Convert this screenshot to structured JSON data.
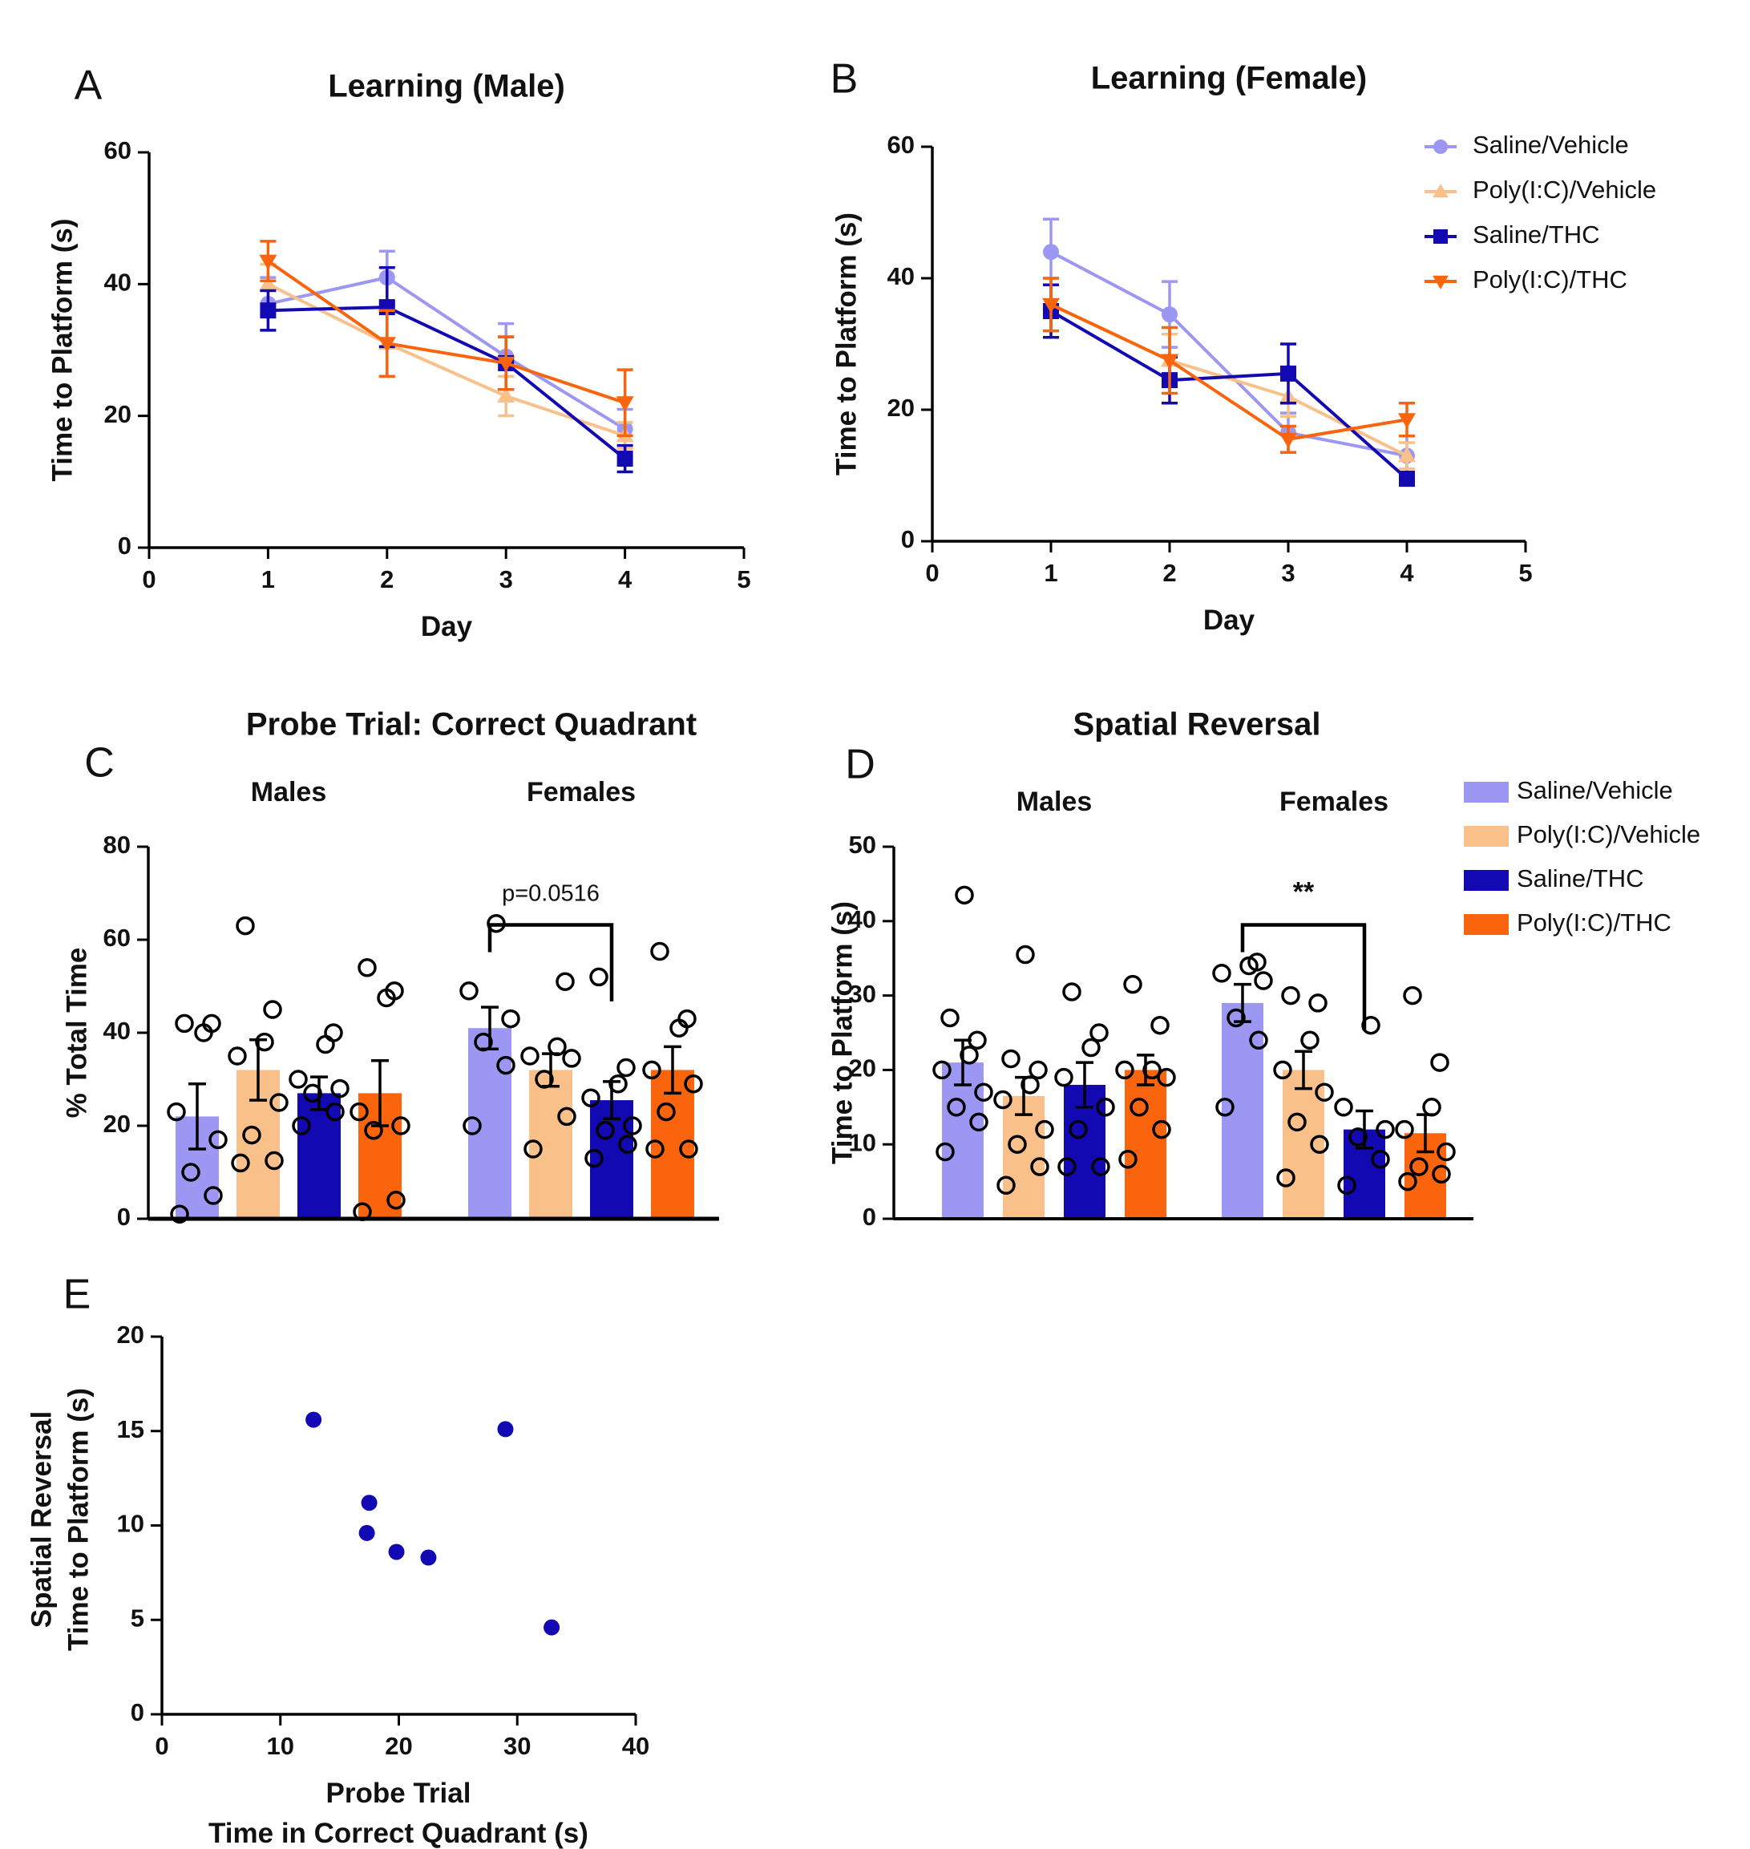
{
  "colors": {
    "saline_vehicle": "#9b97f2",
    "polyic_vehicle": "#f9c08a",
    "saline_thc": "#1209b3",
    "polyic_thc": "#f9640c",
    "axis": "#000000"
  },
  "chart_data": [
    {
      "id": "A",
      "panel_label": "A",
      "type": "line",
      "title": "Learning (Male)",
      "xlabel": "Day",
      "ylabel": "Time to Platform (s)",
      "xlim": [
        0,
        5
      ],
      "ylim": [
        0,
        60
      ],
      "xticks": [
        "0",
        "1",
        "2",
        "3",
        "4",
        "5"
      ],
      "yticks": [
        "0",
        "20",
        "40",
        "60"
      ],
      "x": [
        1,
        2,
        3,
        4
      ],
      "series": [
        {
          "name": "Saline/Vehicle",
          "key": "saline_vehicle",
          "marker": "circle",
          "values": [
            37,
            41,
            29,
            18
          ],
          "err": [
            4,
            4,
            5,
            3
          ]
        },
        {
          "name": "Poly(I:C)/Vehicle",
          "key": "polyic_vehicle",
          "marker": "triangle-up",
          "values": [
            40,
            31,
            23,
            17
          ],
          "err": [
            3,
            5,
            3,
            2
          ]
        },
        {
          "name": "Saline/THC",
          "key": "saline_thc",
          "marker": "square",
          "values": [
            36,
            36.5,
            28,
            13.5
          ],
          "err": [
            3,
            6,
            4,
            2
          ]
        },
        {
          "name": "Poly(I:C)/THC",
          "key": "polyic_thc",
          "marker": "triangle-down",
          "values": [
            43.5,
            31,
            28,
            22
          ],
          "err": [
            3,
            5,
            4,
            5
          ]
        }
      ]
    },
    {
      "id": "B",
      "panel_label": "B",
      "type": "line",
      "title": "Learning (Female)",
      "xlabel": "Day",
      "ylabel": "Time to Platform (s)",
      "xlim": [
        0,
        5
      ],
      "ylim": [
        0,
        60
      ],
      "xticks": [
        "0",
        "1",
        "2",
        "3",
        "4",
        "5"
      ],
      "yticks": [
        "0",
        "20",
        "40",
        "60"
      ],
      "x": [
        1,
        2,
        3,
        4
      ],
      "legend": [
        "Saline/Vehicle",
        "Poly(I:C)/Vehicle",
        "Saline/THC",
        "Poly(I:C)/THC"
      ],
      "series": [
        {
          "name": "Saline/Vehicle",
          "key": "saline_vehicle",
          "marker": "circle",
          "values": [
            44,
            34.5,
            16.5,
            13
          ],
          "err": [
            5,
            5,
            3,
            3
          ]
        },
        {
          "name": "Poly(I:C)/Vehicle",
          "key": "polyic_vehicle",
          "marker": "triangle-up",
          "values": [
            36,
            27.5,
            22,
            13
          ],
          "err": [
            4,
            4,
            3,
            2
          ]
        },
        {
          "name": "Saline/THC",
          "key": "saline_thc",
          "marker": "square",
          "values": [
            35,
            24.5,
            25.5,
            9.5
          ],
          "err": [
            4,
            3.5,
            4.5,
            1
          ]
        },
        {
          "name": "Poly(I:C)/THC",
          "key": "polyic_thc",
          "marker": "triangle-down",
          "values": [
            36,
            27.5,
            15.5,
            18.5
          ],
          "err": [
            4,
            5,
            2,
            2.5
          ]
        }
      ]
    },
    {
      "id": "C",
      "panel_label": "C",
      "type": "bar",
      "title": "Probe Trial: Correct Quadrant",
      "ylabel": "% Total Time",
      "ylim": [
        0,
        80
      ],
      "yticks": [
        "0",
        "20",
        "40",
        "60",
        "80"
      ],
      "groups": [
        "Males",
        "Females"
      ],
      "annotation": "p=0.0516",
      "bars": [
        {
          "group": 0,
          "series": "Saline/Vehicle",
          "key": "saline_vehicle",
          "value": 22,
          "err": 7,
          "points": [
            1,
            5,
            10,
            17,
            23,
            40,
            42,
            42
          ]
        },
        {
          "group": 0,
          "series": "Poly(I:C)/Vehicle",
          "key": "polyic_vehicle",
          "value": 32,
          "err": 6.5,
          "points": [
            12,
            12.5,
            18,
            25,
            35,
            38,
            45,
            63
          ]
        },
        {
          "group": 0,
          "series": "Saline/THC",
          "key": "saline_thc",
          "value": 27,
          "err": 3.5,
          "points": [
            20,
            23,
            27,
            28,
            30,
            37.5,
            40
          ]
        },
        {
          "group": 0,
          "series": "Poly(I:C)/THC",
          "key": "polyic_thc",
          "value": 27,
          "err": 7,
          "points": [
            1.5,
            4,
            19,
            20,
            23,
            47.5,
            49,
            54
          ]
        },
        {
          "group": 1,
          "series": "Saline/Vehicle",
          "key": "saline_vehicle",
          "value": 41,
          "err": 4.5,
          "points": [
            20,
            33,
            38,
            43,
            49,
            63.5
          ]
        },
        {
          "group": 1,
          "series": "Poly(I:C)/Vehicle",
          "key": "polyic_vehicle",
          "value": 32,
          "err": 3.5,
          "points": [
            15,
            22,
            30,
            34.5,
            35,
            37,
            51
          ]
        },
        {
          "group": 1,
          "series": "Saline/THC",
          "key": "saline_thc",
          "value": 25.5,
          "err": 4,
          "points": [
            13,
            16,
            19,
            20,
            26,
            29,
            32.5,
            52
          ]
        },
        {
          "group": 1,
          "series": "Poly(I:C)/THC",
          "key": "polyic_thc",
          "value": 32,
          "err": 5,
          "points": [
            15,
            15,
            23,
            29,
            32,
            41,
            43,
            57.5
          ]
        }
      ]
    },
    {
      "id": "D",
      "panel_label": "D",
      "type": "bar",
      "title": "Spatial Reversal",
      "ylabel": "Time to Platform (s)",
      "ylim": [
        0,
        50
      ],
      "yticks": [
        "0",
        "10",
        "20",
        "30",
        "40",
        "50"
      ],
      "groups": [
        "Males",
        "Females"
      ],
      "annotation": "**",
      "legend": [
        "Saline/Vehicle",
        "Poly(I:C)/Vehicle",
        "Saline/THC",
        "Poly(I:C)/THC"
      ],
      "bars": [
        {
          "group": 0,
          "series": "Saline/Vehicle",
          "key": "saline_vehicle",
          "value": 21,
          "err": 3,
          "points": [
            9,
            13,
            15,
            17,
            20,
            22,
            24,
            27,
            43.5
          ]
        },
        {
          "group": 0,
          "series": "Poly(I:C)/Vehicle",
          "key": "polyic_vehicle",
          "value": 16.5,
          "err": 2.5,
          "points": [
            4.5,
            7,
            10,
            12,
            16,
            18,
            20,
            21.5,
            35.5
          ]
        },
        {
          "group": 0,
          "series": "Saline/THC",
          "key": "saline_thc",
          "value": 18,
          "err": 3,
          "points": [
            7,
            7,
            12,
            15,
            19,
            23,
            25,
            30.5
          ]
        },
        {
          "group": 0,
          "series": "Poly(I:C)/THC",
          "key": "polyic_thc",
          "value": 20,
          "err": 2,
          "points": [
            8,
            12,
            15,
            19,
            20,
            20,
            26,
            31.5
          ]
        },
        {
          "group": 1,
          "series": "Saline/Vehicle",
          "key": "saline_vehicle",
          "value": 29,
          "err": 2.5,
          "points": [
            15,
            24,
            27,
            32,
            33,
            34,
            34.5
          ]
        },
        {
          "group": 1,
          "series": "Poly(I:C)/Vehicle",
          "key": "polyic_vehicle",
          "value": 20,
          "err": 2.5,
          "points": [
            5.5,
            10,
            13,
            17,
            20,
            24,
            29,
            30
          ]
        },
        {
          "group": 1,
          "series": "Saline/THC",
          "key": "saline_thc",
          "value": 12,
          "err": 2.5,
          "points": [
            4.5,
            8,
            11,
            12,
            15,
            26
          ]
        },
        {
          "group": 1,
          "series": "Poly(I:C)/THC",
          "key": "polyic_thc",
          "value": 11.5,
          "err": 2.5,
          "points": [
            5,
            6,
            7,
            9,
            12,
            15,
            21,
            30
          ]
        }
      ]
    },
    {
      "id": "E",
      "panel_label": "E",
      "type": "scatter",
      "xlabel_lines": [
        "Probe Trial",
        "Time in Correct Quadrant (s)"
      ],
      "ylabel_lines": [
        "Spatial Reversal",
        "Time to Platform (s)"
      ],
      "xlim": [
        0,
        40
      ],
      "ylim": [
        0,
        20
      ],
      "xticks": [
        "0",
        "10",
        "20",
        "30",
        "40"
      ],
      "yticks": [
        "0",
        "5",
        "10",
        "15",
        "20"
      ],
      "color_key": "saline_thc",
      "points": [
        [
          12.8,
          15.6
        ],
        [
          17.5,
          11.2
        ],
        [
          17.3,
          9.6
        ],
        [
          19.8,
          8.6
        ],
        [
          22.5,
          8.3
        ],
        [
          29,
          15.1
        ],
        [
          32.9,
          4.6
        ]
      ]
    }
  ]
}
